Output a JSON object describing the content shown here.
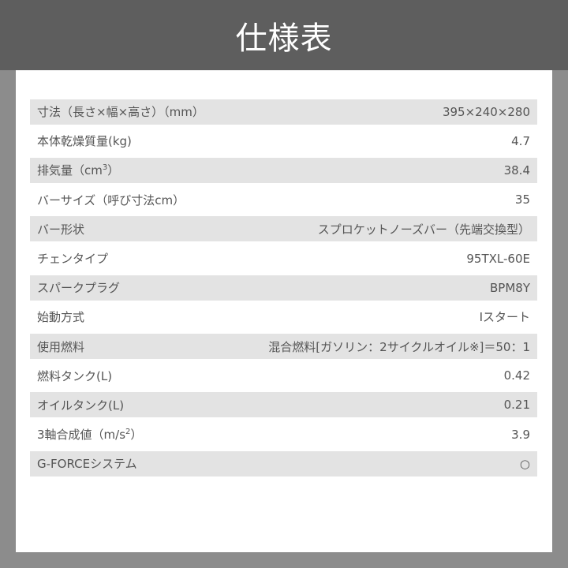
{
  "title": "仕様表",
  "rows": [
    {
      "label": "寸法（長さ×幅×高さ）（mm）",
      "sup": "",
      "suffix": "",
      "value": "395×240×280"
    },
    {
      "label": "本体乾燥質量(kg)",
      "sup": "",
      "suffix": "",
      "value": "4.7"
    },
    {
      "label": "排気量（cm",
      "sup": "3",
      "suffix": "）",
      "value": "38.4"
    },
    {
      "label": "バーサイズ（呼び寸法cm）",
      "sup": "",
      "suffix": "",
      "value": "35"
    },
    {
      "label": "バー形状",
      "sup": "",
      "suffix": "",
      "value": "スプロケットノーズバー（先端交換型）"
    },
    {
      "label": "チェンタイプ",
      "sup": "",
      "suffix": "",
      "value": "95TXL-60E"
    },
    {
      "label": "スパークプラグ",
      "sup": "",
      "suffix": "",
      "value": "BPM8Y"
    },
    {
      "label": "始動方式",
      "sup": "",
      "suffix": "",
      "value": "Iスタート"
    },
    {
      "label": "使用燃料",
      "sup": "",
      "suffix": "",
      "value": "混合燃料[ガソリン：2サイクルオイル※]＝50：1"
    },
    {
      "label": "燃料タンク(L)",
      "sup": "",
      "suffix": "",
      "value": "0.42"
    },
    {
      "label": "オイルタンク(L)",
      "sup": "",
      "suffix": "",
      "value": "0.21"
    },
    {
      "label": "3軸合成値（m/s",
      "sup": "2",
      "suffix": "）",
      "value": "3.9"
    },
    {
      "label": "G-FORCEシステム",
      "sup": "",
      "suffix": "",
      "value": "○"
    }
  ]
}
